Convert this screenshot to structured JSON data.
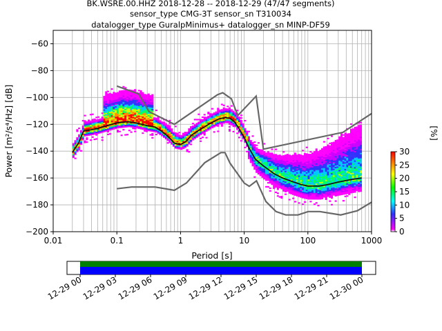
{
  "title_lines": [
    "BK.WSRE.00.HHZ   2018-12-28 -- 2018-12-29  (47/47 segments)",
    "sensor_type CMG-3T sensor_sn T310034",
    "datalogger_type GuralpMinimus+ datalogger_sn MINP-DF59"
  ],
  "colors": {
    "mode_line": "#111111",
    "noise_models": "#666666",
    "grid": "#b0b0b0",
    "timeline_green": "#008000",
    "timeline_blue": "#0000ff"
  },
  "chart_data": {
    "type": "heatmap",
    "xlabel": "Period [s]",
    "ylabel": "Power [m²/s⁴/Hz] [dB]",
    "x_scale": "log",
    "xlim": [
      0.01,
      1000
    ],
    "ylim": [
      -200,
      -50
    ],
    "x_ticks": [
      {
        "value": 0.01,
        "label": "0.01"
      },
      {
        "value": 0.1,
        "label": "0.1"
      },
      {
        "value": 1,
        "label": "1"
      },
      {
        "value": 10,
        "label": "10"
      },
      {
        "value": 100,
        "label": "100"
      },
      {
        "value": 1000,
        "label": "1000"
      }
    ],
    "y_ticks": [
      -60,
      -80,
      -100,
      -120,
      -140,
      -160,
      -180,
      -200
    ],
    "y_tick_labels": [
      "−60",
      "−80",
      "−100",
      "−120",
      "−140",
      "−160",
      "−180",
      "−200"
    ],
    "grid": true,
    "mode_curve": [
      [
        0.02,
        -141
      ],
      [
        0.025,
        -134
      ],
      [
        0.03,
        -125
      ],
      [
        0.04,
        -124
      ],
      [
        0.05,
        -123
      ],
      [
        0.07,
        -121
      ],
      [
        0.1,
        -119
      ],
      [
        0.15,
        -118
      ],
      [
        0.2,
        -119
      ],
      [
        0.3,
        -121
      ],
      [
        0.4,
        -122
      ],
      [
        0.5,
        -125
      ],
      [
        0.6,
        -128
      ],
      [
        0.7,
        -131
      ],
      [
        0.8,
        -134
      ],
      [
        1.0,
        -135
      ],
      [
        1.2,
        -133
      ],
      [
        1.5,
        -128
      ],
      [
        2.0,
        -124
      ],
      [
        3.0,
        -119
      ],
      [
        4.0,
        -116
      ],
      [
        5.0,
        -115
      ],
      [
        6.0,
        -115.5
      ],
      [
        7.0,
        -118
      ],
      [
        8.0,
        -122
      ],
      [
        10.0,
        -130
      ],
      [
        12.0,
        -138
      ],
      [
        15.0,
        -146
      ],
      [
        20.0,
        -151
      ],
      [
        30.0,
        -157
      ],
      [
        40.0,
        -160
      ],
      [
        60.0,
        -163
      ],
      [
        80.0,
        -165
      ],
      [
        100.0,
        -166
      ],
      [
        150.0,
        -166
      ],
      [
        200.0,
        -165
      ],
      [
        300.0,
        -163
      ],
      [
        500.0,
        -161
      ],
      [
        700.0,
        -160
      ]
    ],
    "new_high_noise_model": [
      [
        0.1,
        -91.5
      ],
      [
        0.22,
        -97.4
      ],
      [
        0.32,
        -110.5
      ],
      [
        0.8,
        -120
      ],
      [
        3.8,
        -98
      ],
      [
        4.6,
        -96.5
      ],
      [
        6.3,
        -101
      ],
      [
        7.9,
        -113.5
      ],
      [
        15.4,
        -99
      ],
      [
        20.0,
        -138.5
      ],
      [
        354.8,
        -126
      ],
      [
        1000,
        -112
      ]
    ],
    "new_low_noise_model": [
      [
        0.1,
        -168
      ],
      [
        0.17,
        -166.7
      ],
      [
        0.4,
        -166.7
      ],
      [
        0.8,
        -169.2
      ],
      [
        1.24,
        -163.7
      ],
      [
        2.4,
        -148.6
      ],
      [
        4.3,
        -141.1
      ],
      [
        5.0,
        -141.1
      ],
      [
        6.0,
        -149
      ],
      [
        10.0,
        -163.8
      ],
      [
        12.0,
        -166.2
      ],
      [
        15.6,
        -162.1
      ],
      [
        21.9,
        -177.5
      ],
      [
        31.6,
        -185
      ],
      [
        45.0,
        -187.5
      ],
      [
        70.0,
        -187.5
      ],
      [
        101.0,
        -185
      ],
      [
        154.0,
        -185
      ],
      [
        328.0,
        -187.5
      ],
      [
        600.0,
        -184.4
      ],
      [
        1000,
        -178
      ]
    ],
    "colorbar": {
      "label": "[%]",
      "range": [
        0,
        30
      ],
      "ticks": [
        0,
        5,
        10,
        15,
        20,
        25,
        30
      ],
      "colormap": [
        "#ffffff",
        "#ff00ff",
        "#0000ff",
        "#00ffff",
        "#00ff00",
        "#ffff00",
        "#ff8000",
        "#ff0000"
      ]
    },
    "timeline": {
      "tick_labels": [
        "12-29 00",
        "12-29 03",
        "12-29 06",
        "12-29 09",
        "12-29 12",
        "12-29 15",
        "12-29 18",
        "12-29 21",
        "12-30 00"
      ],
      "segments": 47,
      "coverage": [
        0,
        1
      ]
    }
  }
}
